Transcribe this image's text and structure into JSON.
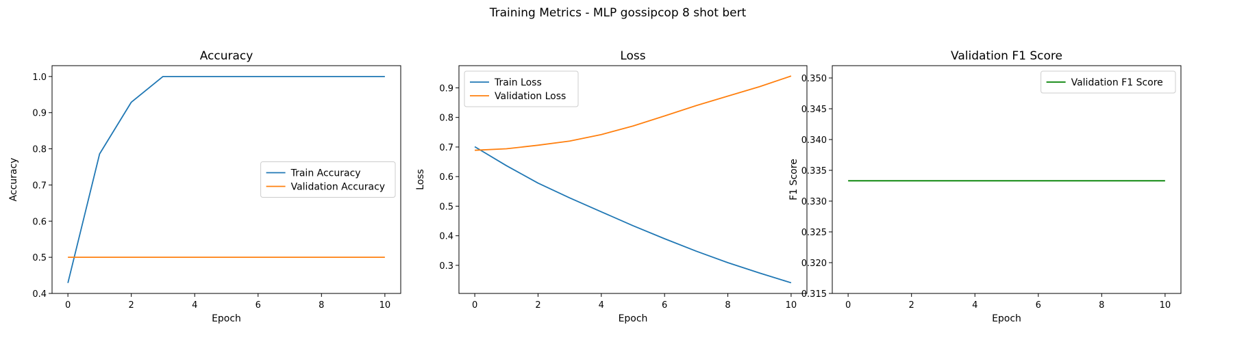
{
  "figure": {
    "suptitle": "Training Metrics - MLP gossipcop 8 shot bert"
  },
  "colors": {
    "train": "#1f77b4",
    "validation": "#ff7f0e",
    "f1": "#008000"
  },
  "chart_data": [
    {
      "type": "line",
      "title": "Accuracy",
      "xlabel": "Epoch",
      "ylabel": "Accuracy",
      "xlim": [
        -0.5,
        10.5
      ],
      "ylim": [
        0.4,
        1.03
      ],
      "xticks": [
        0,
        2,
        4,
        6,
        8,
        10
      ],
      "yticks": [
        0.4,
        0.5,
        0.6,
        0.7,
        0.8,
        0.9,
        1.0
      ],
      "ytick_labels": [
        "0.4",
        "0.5",
        "0.6",
        "0.7",
        "0.8",
        "0.9",
        "1.0"
      ],
      "x": [
        0,
        1,
        2,
        3,
        4,
        5,
        6,
        7,
        8,
        9,
        10
      ],
      "series": [
        {
          "name": "Train Accuracy",
          "color": "#1f77b4",
          "values": [
            0.429,
            0.786,
            0.929,
            1.0,
            1.0,
            1.0,
            1.0,
            1.0,
            1.0,
            1.0,
            1.0
          ]
        },
        {
          "name": "Validation Accuracy",
          "color": "#ff7f0e",
          "values": [
            0.5,
            0.5,
            0.5,
            0.5,
            0.5,
            0.5,
            0.5,
            0.5,
            0.5,
            0.5,
            0.5
          ]
        }
      ],
      "legend": "center-right",
      "grid": false
    },
    {
      "type": "line",
      "title": "Loss",
      "xlabel": "Epoch",
      "ylabel": "Loss",
      "xlim": [
        -0.5,
        10.5
      ],
      "ylim": [
        0.205,
        0.975
      ],
      "xticks": [
        0,
        2,
        4,
        6,
        8,
        10
      ],
      "yticks": [
        0.3,
        0.4,
        0.5,
        0.6,
        0.7,
        0.8,
        0.9
      ],
      "ytick_labels": [
        "0.3",
        "0.4",
        "0.5",
        "0.6",
        "0.7",
        "0.8",
        "0.9"
      ],
      "x": [
        0,
        1,
        2,
        3,
        4,
        5,
        6,
        7,
        8,
        9,
        10
      ],
      "series": [
        {
          "name": "Train Loss",
          "color": "#1f77b4",
          "values": [
            0.701,
            0.637,
            0.578,
            0.528,
            0.481,
            0.434,
            0.39,
            0.348,
            0.309,
            0.274,
            0.241
          ]
        },
        {
          "name": "Validation Loss",
          "color": "#ff7f0e",
          "values": [
            0.689,
            0.694,
            0.706,
            0.72,
            0.742,
            0.771,
            0.805,
            0.84,
            0.872,
            0.904,
            0.94
          ]
        }
      ],
      "legend": "upper-left",
      "grid": false
    },
    {
      "type": "line",
      "title": "Validation F1 Score",
      "xlabel": "Epoch",
      "ylabel": "F1 Score",
      "xlim": [
        -0.5,
        10.5
      ],
      "ylim": [
        0.315,
        0.352
      ],
      "xticks": [
        0,
        2,
        4,
        6,
        8,
        10
      ],
      "yticks": [
        0.315,
        0.32,
        0.325,
        0.33,
        0.335,
        0.34,
        0.345,
        0.35
      ],
      "ytick_labels": [
        "0.315",
        "0.320",
        "0.325",
        "0.330",
        "0.335",
        "0.340",
        "0.345",
        "0.350"
      ],
      "x": [
        0,
        1,
        2,
        3,
        4,
        5,
        6,
        7,
        8,
        9,
        10
      ],
      "series": [
        {
          "name": "Validation F1 Score",
          "color": "#008000",
          "values": [
            0.3333,
            0.3333,
            0.3333,
            0.3333,
            0.3333,
            0.3333,
            0.3333,
            0.3333,
            0.3333,
            0.3333,
            0.3333
          ]
        }
      ],
      "legend": "upper-right",
      "grid": false
    }
  ]
}
